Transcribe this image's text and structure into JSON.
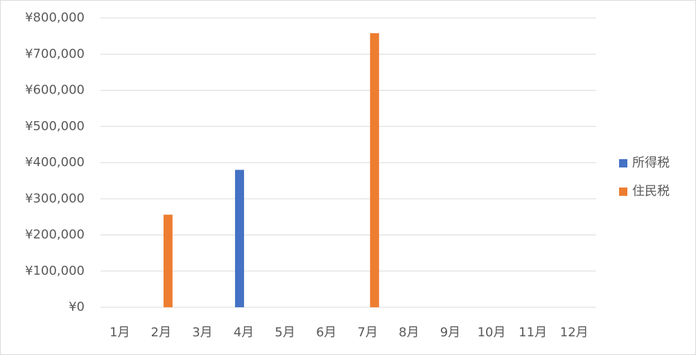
{
  "chart_data": {
    "type": "bar",
    "categories": [
      "1月",
      "2月",
      "3月",
      "4月",
      "5月",
      "6月",
      "7月",
      "8月",
      "9月",
      "10月",
      "11月",
      "12月"
    ],
    "series": [
      {
        "name": "所得税",
        "color": "#4472c4",
        "values": [
          0,
          0,
          0,
          380000,
          0,
          0,
          0,
          0,
          0,
          0,
          0,
          0
        ]
      },
      {
        "name": "住民税",
        "color": "#ed7d31",
        "values": [
          0,
          256000,
          0,
          0,
          0,
          0,
          758000,
          0,
          0,
          0,
          0,
          0
        ]
      }
    ],
    "ylim": [
      0,
      800000
    ],
    "yticks": [
      {
        "value": 0,
        "label": "¥0"
      },
      {
        "value": 100000,
        "label": "¥100,000"
      },
      {
        "value": 200000,
        "label": "¥200,000"
      },
      {
        "value": 300000,
        "label": "¥300,000"
      },
      {
        "value": 400000,
        "label": "¥400,000"
      },
      {
        "value": 500000,
        "label": "¥500,000"
      },
      {
        "value": 600000,
        "label": "¥600,000"
      },
      {
        "value": 700000,
        "label": "¥700,000"
      },
      {
        "value": 800000,
        "label": "¥800,000"
      }
    ],
    "grid": true,
    "legend": "right"
  }
}
